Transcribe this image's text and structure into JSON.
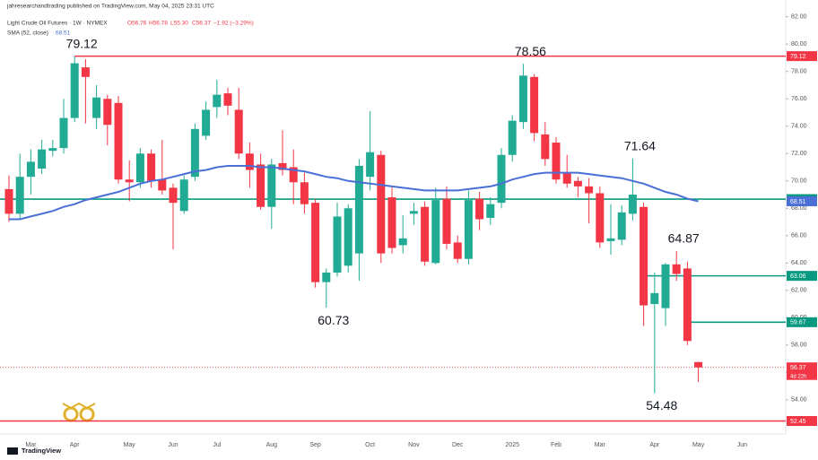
{
  "header": {
    "publisher": "jahresearchandtrading published on TradingView.com, May 04, 2025 23:31 UTC",
    "brand": "TradingView"
  },
  "chart_data": {
    "type": "candlestick",
    "title": "Light Crude Oil Futures · 1W · NYMEX",
    "ohlc_text": [
      "O56.76",
      "H56.78",
      "L55.30",
      "C56.37",
      "−1.92 (−3.29%)"
    ],
    "countdown": "4d 22h",
    "up_color": "#22ab94",
    "down_color": "#f23645",
    "categories": [
      null,
      null,
      "Mar",
      null,
      null,
      null,
      "Apr",
      null,
      null,
      null,
      null,
      "May",
      null,
      null,
      null,
      "Jun",
      null,
      null,
      null,
      "Jul",
      null,
      null,
      null,
      null,
      "Aug",
      null,
      null,
      null,
      "Sep",
      null,
      null,
      null,
      null,
      "Oct",
      null,
      null,
      null,
      "Nov",
      null,
      null,
      null,
      "Dec",
      null,
      null,
      null,
      null,
      "2025",
      null,
      null,
      null,
      "Feb",
      null,
      null,
      null,
      "Mar",
      null,
      null,
      null,
      null,
      "Apr",
      null,
      null,
      null,
      "May",
      null,
      null,
      null,
      "Jun"
    ],
    "open": [
      69.4,
      67.6,
      70.3,
      70.9,
      72.2,
      72.4,
      74.6,
      78.3,
      74.6,
      76.0,
      75.7,
      70.1,
      69.9,
      72.0,
      70.1,
      69.5,
      67.8,
      70.3,
      73.3,
      75.4,
      76.4,
      75.2,
      72.0,
      71.2,
      68.1,
      71.3,
      71.0,
      69.9,
      68.4,
      62.6,
      63.3,
      63.8,
      64.7,
      70.3,
      71.9,
      68.8,
      65.3,
      67.6,
      68.1,
      64.0,
      68.7,
      65.5,
      64.3,
      68.7,
      67.3,
      68.4,
      71.9,
      74.3,
      77.6,
      73.4,
      72.8,
      70.6,
      70.0,
      69.6,
      69.1,
      65.6,
      65.7,
      67.6,
      68.1,
      61.0,
      60.7,
      63.9,
      63.6,
      56.76,
      null,
      null,
      null,
      null
    ],
    "high": [
      70.4,
      72.0,
      72.3,
      73.0,
      73.0,
      76.0,
      79.12,
      78.9,
      77.0,
      76.3,
      76.2,
      71.5,
      72.4,
      72.3,
      73.0,
      69.8,
      70.4,
      74.2,
      75.8,
      77.4,
      76.8,
      76.8,
      72.8,
      72.0,
      71.6,
      73.7,
      72.3,
      70.6,
      68.7,
      63.6,
      68.4,
      68.3,
      71.6,
      75.1,
      72.2,
      69.5,
      67.5,
      68.4,
      68.5,
      69.5,
      69.6,
      66.0,
      69.3,
      69.2,
      68.8,
      72.4,
      74.8,
      78.56,
      77.8,
      74.3,
      73.2,
      71.9,
      70.3,
      70.2,
      69.6,
      68.3,
      68.2,
      71.64,
      68.4,
      63.3,
      64.0,
      64.87,
      64.1,
      56.78,
      null,
      null,
      null,
      null
    ],
    "low": [
      67.0,
      67.2,
      69.0,
      70.5,
      71.8,
      72.0,
      74.3,
      74.2,
      73.8,
      72.6,
      69.8,
      68.5,
      69.5,
      69.5,
      69.0,
      65.0,
      67.6,
      70.0,
      73.0,
      74.6,
      74.8,
      71.6,
      69.5,
      67.9,
      66.5,
      70.4,
      68.3,
      67.6,
      62.2,
      60.73,
      63.0,
      63.3,
      62.7,
      69.3,
      64.0,
      64.7,
      64.7,
      66.8,
      63.8,
      63.9,
      65.0,
      64.0,
      63.9,
      66.4,
      66.8,
      68.0,
      71.4,
      73.8,
      72.9,
      71.1,
      69.8,
      69.5,
      68.8,
      66.9,
      65.1,
      64.6,
      65.3,
      67.1,
      59.4,
      54.48,
      59.4,
      62.7,
      58.0,
      55.3,
      null,
      null,
      null,
      null
    ],
    "close": [
      67.6,
      70.3,
      71.4,
      72.3,
      72.4,
      74.6,
      78.6,
      77.6,
      76.1,
      74.1,
      70.1,
      69.9,
      72.0,
      70.0,
      69.3,
      68.4,
      70.1,
      73.8,
      75.2,
      76.3,
      75.5,
      72.0,
      70.8,
      68.1,
      71.2,
      70.8,
      69.9,
      68.3,
      62.6,
      63.3,
      67.4,
      68.0,
      71.1,
      72.1,
      64.7,
      65.1,
      65.8,
      67.8,
      64.1,
      68.6,
      65.4,
      64.3,
      68.6,
      67.2,
      68.3,
      71.9,
      74.4,
      77.7,
      73.5,
      71.6,
      70.1,
      69.8,
      69.6,
      69.1,
      65.5,
      65.8,
      67.7,
      69.0,
      60.9,
      61.8,
      63.9,
      63.2,
      58.3,
      56.37,
      null,
      null,
      null,
      null
    ],
    "sma": {
      "name": "SMA (52, close)",
      "color": "#4a6fd6",
      "values": [
        67.2,
        67.2,
        67.4,
        67.6,
        67.8,
        68.1,
        68.3,
        68.6,
        68.8,
        69.0,
        69.2,
        69.5,
        69.8,
        70.0,
        70.1,
        70.3,
        70.5,
        70.7,
        70.8,
        71.0,
        71.1,
        71.1,
        71.1,
        71.0,
        71.0,
        70.9,
        70.8,
        70.7,
        70.5,
        70.3,
        70.2,
        70.0,
        69.9,
        69.8,
        69.7,
        69.6,
        69.5,
        69.4,
        69.3,
        69.3,
        69.3,
        69.3,
        69.4,
        69.5,
        69.6,
        69.8,
        70.1,
        70.3,
        70.5,
        70.6,
        70.6,
        70.6,
        70.6,
        70.5,
        70.4,
        70.3,
        70.2,
        70.0,
        69.8,
        69.5,
        69.2,
        69.0,
        68.7,
        68.51,
        null,
        null,
        null,
        null
      ]
    },
    "levels": [
      {
        "value": 79.12,
        "color": "#f23645",
        "extend": "right"
      },
      {
        "value": 68.67,
        "color": "#089981",
        "extend": "both"
      },
      {
        "value": 63.06,
        "color": "#089981",
        "extend": "right"
      },
      {
        "value": 59.67,
        "color": "#089981",
        "extend": "right"
      },
      {
        "value": 52.45,
        "color": "#f23645",
        "extend": "both"
      }
    ],
    "annotations": [
      {
        "label": "79.12",
        "value": 79.12
      },
      {
        "label": "60.73",
        "value": 60.73
      },
      {
        "label": "78.56",
        "value": 78.56
      },
      {
        "label": "71.64",
        "value": 71.64
      },
      {
        "label": "64.87",
        "value": 64.87
      },
      {
        "label": "54.48",
        "value": 54.48
      }
    ],
    "ylim": [
      51.5,
      82.7
    ],
    "yticks": [
      {
        "value": 54,
        "label": "54.00"
      },
      {
        "value": 56,
        "label": "56.00"
      },
      {
        "value": 58,
        "label": "58.00"
      },
      {
        "value": 60,
        "label": "60.00"
      },
      {
        "value": 62,
        "label": "62.00"
      },
      {
        "value": 64,
        "label": "64.00"
      },
      {
        "value": 66,
        "label": "66.00"
      },
      {
        "value": 68,
        "label": "68.00"
      },
      {
        "value": 70,
        "label": "70.00"
      },
      {
        "value": 72,
        "label": "72.00"
      },
      {
        "value": 74,
        "label": "74.00"
      },
      {
        "value": 76,
        "label": "76.00"
      },
      {
        "value": 78,
        "label": "78.00"
      },
      {
        "value": 80,
        "label": "80.00"
      },
      {
        "value": 82,
        "label": "82.00"
      }
    ]
  }
}
